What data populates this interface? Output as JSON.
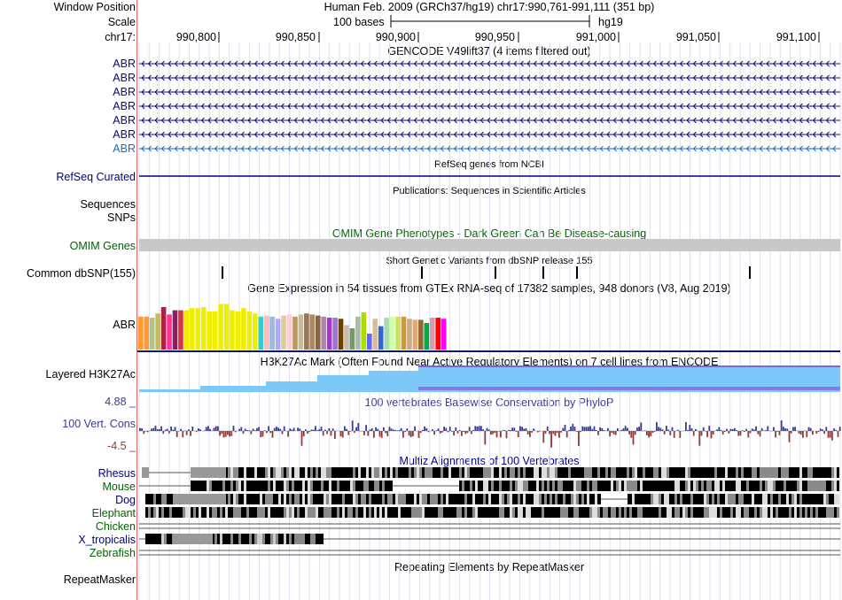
{
  "header": {
    "window_position_label": "Window Position",
    "scale_label": "Scale",
    "chrom_label": "chr17:",
    "assembly_title": "Human Feb. 2009 (GRCh37/hg19)   chr17:990,761-991,111 (351 bp)",
    "scale_text": "100 bases",
    "db": "hg19",
    "ruler_ticks": [
      "990,800",
      "990,850",
      "990,900",
      "990,950",
      "991,000",
      "991,050",
      "991,100"
    ]
  },
  "tracks": {
    "gencode": {
      "title": "GENCODE V49lift37 (4 items filtered out)",
      "items": [
        "ABR",
        "ABR",
        "ABR",
        "ABR",
        "ABR",
        "ABR",
        "ABR"
      ]
    },
    "refseq": {
      "label": "RefSeq Curated",
      "title": "RefSeq genes from NCBI"
    },
    "publications": {
      "title": "Publications: Sequences in Scientific Articles",
      "label_line1": "Sequences",
      "label_line2": "SNPs"
    },
    "omim": {
      "label": "OMIM Genes",
      "title": "OMIM Gene Phenotypes - Dark Green Can Be Disease-causing"
    },
    "dbsnp": {
      "label": "Common dbSNP(155)",
      "title": "Short Genetic Variants from dbSNP release 155"
    },
    "gtex": {
      "label": "ABR",
      "title": "Gene Expression in 54 tissues from GTEx RNA-seq of 17382 samples, 948 donors (V8, Aug 2019)"
    },
    "h3k27ac": {
      "label": "Layered H3K27Ac",
      "title": "H3K27Ac Mark (Often Found Near Active Regulatory Elements) on 7 cell lines from ENCODE"
    },
    "cons": {
      "label": "100 Vert. Cons",
      "max": "4.88 _",
      "min": "-4.5 _",
      "title": "100 vertebrates Basewise Conservation by PhyloP"
    },
    "multiz": {
      "title": "Multiz Alignments of 100 Vertebrates",
      "species": [
        "Rhesus",
        "Mouse",
        "Dog",
        "Elephant",
        "Chicken",
        "X_tropicalis",
        "Zebrafish"
      ]
    },
    "rmsk": {
      "label": "RepeatMasker",
      "title": "Repeating Elements by RepeatMasker"
    }
  },
  "colors": {
    "navy": "#000080",
    "green": "#006400",
    "gencode_blue": "#0c0c78",
    "light_blue": "#1e6bb8",
    "cons_pos": "#3b3b8f",
    "cons_neg": "#8f3b3b",
    "h3k_light": "#7cc8f8",
    "omim_grey": "#c8c8c8"
  },
  "gtex_bars": [
    {
      "color": "#ff9a32",
      "value": 0.62
    },
    {
      "color": "#ff9a32",
      "value": 0.62
    },
    {
      "color": "#aec880",
      "value": 0.6
    },
    {
      "color": "#c8b860",
      "value": 0.68
    },
    {
      "color": "#aa2244",
      "value": 0.8
    },
    {
      "color": "#ff3399",
      "value": 0.66
    },
    {
      "color": "#8b1c62",
      "value": 0.74
    },
    {
      "color": "#dd3344",
      "value": 0.74
    },
    {
      "color": "#eeee00",
      "value": 0.74
    },
    {
      "color": "#eeee00",
      "value": 0.78
    },
    {
      "color": "#eeee00",
      "value": 0.78
    },
    {
      "color": "#eeee00",
      "value": 0.8
    },
    {
      "color": "#eeee00",
      "value": 0.72
    },
    {
      "color": "#eeee00",
      "value": 0.72
    },
    {
      "color": "#eeee00",
      "value": 0.86
    },
    {
      "color": "#eeee00",
      "value": 0.86
    },
    {
      "color": "#eeee00",
      "value": 0.74
    },
    {
      "color": "#eeee00",
      "value": 0.72
    },
    {
      "color": "#eeee00",
      "value": 0.78
    },
    {
      "color": "#eeee00",
      "value": 0.72
    },
    {
      "color": "#eeee00",
      "value": 0.68
    },
    {
      "color": "#33cccc",
      "value": 0.62
    },
    {
      "color": "#ffbbbb",
      "value": 0.64
    },
    {
      "color": "#99bbdd",
      "value": 0.62
    },
    {
      "color": "#aaaaff",
      "value": 0.58
    },
    {
      "color": "#ddcc99",
      "value": 0.64
    },
    {
      "color": "#ffccdd",
      "value": 0.66
    },
    {
      "color": "#bb9966",
      "value": 0.62
    },
    {
      "color": "#ccbb99",
      "value": 0.66
    },
    {
      "color": "#9b7653",
      "value": 0.68
    },
    {
      "color": "#aa8866",
      "value": 0.66
    },
    {
      "color": "#886644",
      "value": 0.64
    },
    {
      "color": "#aa88aa",
      "value": 0.62
    },
    {
      "color": "#aa33cc",
      "value": 0.6
    },
    {
      "color": "#9977cc",
      "value": 0.6
    },
    {
      "color": "#664400",
      "value": 0.58
    },
    {
      "color": "#ccbbaa",
      "value": 0.46
    },
    {
      "color": "#779966",
      "value": 0.4
    },
    {
      "color": "#aabbaa",
      "value": 0.62
    },
    {
      "color": "#aadd00",
      "value": 0.7
    },
    {
      "color": "#6666ff",
      "value": 0.3
    },
    {
      "color": "#ddbb99",
      "value": 0.58
    },
    {
      "color": "#3366cc",
      "value": 0.44
    },
    {
      "color": "#aaddaa",
      "value": 0.6
    },
    {
      "color": "#ccffaa",
      "value": 0.62
    },
    {
      "color": "#ccdd66",
      "value": 0.62
    },
    {
      "color": "#cc9933",
      "value": 0.62
    },
    {
      "color": "#ccaa88",
      "value": 0.58
    },
    {
      "color": "#ddaa77",
      "value": 0.56
    },
    {
      "color": "#996633",
      "value": 0.56
    },
    {
      "color": "#00aa44",
      "value": 0.5
    },
    {
      "color": "#dd99aa",
      "value": 0.6
    },
    {
      "color": "#ff0000",
      "value": 0.6
    },
    {
      "color": "#ff00ff",
      "value": 0.58
    }
  ]
}
